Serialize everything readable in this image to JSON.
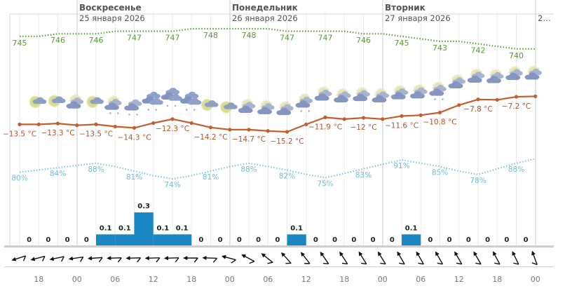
{
  "colors": {
    "pressure": "#5e9e3c",
    "temperature": "#c0602f",
    "humidity": "#82c8d8",
    "precipitation": "#1a86c4",
    "grid": "#ebebeb",
    "day_separator": "#cfcfcf",
    "wind": "#111111"
  },
  "days": [
    {
      "name": "Воскресенье",
      "date": "25 января 2026"
    },
    {
      "name": "Понедельник",
      "date": "26 января 2026"
    },
    {
      "name": "Вторник",
      "date": "27 января 2026"
    }
  ],
  "next_day_truncated": "2…",
  "chart_data": {
    "type": "line",
    "title": "",
    "step_hours": 3,
    "x_tick_labels": [
      "18",
      "00",
      "06",
      "12",
      "18",
      "00",
      "06",
      "12",
      "18",
      "00",
      "06",
      "12",
      "18",
      "00"
    ],
    "temperature": {
      "unit": "°C",
      "values": [
        -13.5,
        -13.5,
        -13.3,
        -13.7,
        -13.5,
        -14.0,
        -14.3,
        -13.2,
        -12.3,
        -13.2,
        -14.2,
        -14.7,
        -14.7,
        -15.0,
        -15.2,
        -13.5,
        -11.9,
        -12.3,
        -12.0,
        -12.3,
        -11.6,
        -11.4,
        -10.8,
        -9.1,
        -7.8,
        -7.9,
        -7.2,
        -7.1
      ],
      "labels": [
        "−13.5 °C",
        "−13.3 °C",
        "−13.5 °C",
        "−14.3 °C",
        "−12.3 °C",
        "−14.2 °C",
        "−14.7 °C",
        "−15.2 °C",
        "−11.9 °C",
        "−12 °C",
        "−11.6 °C",
        "−10.8 °C",
        "−7.8 °C",
        "−7.2 °C"
      ]
    },
    "pressure": {
      "values": [
        745,
        745,
        746,
        746,
        746,
        747,
        747,
        747,
        747,
        748,
        748,
        748,
        748,
        748,
        747,
        747,
        747,
        747,
        746,
        746,
        745,
        744,
        743,
        743,
        742,
        741,
        740,
        740
      ],
      "labels": [
        "745",
        "746",
        "746",
        "747",
        "747",
        "748",
        "748",
        "747",
        "747",
        "746",
        "745",
        "743",
        "742",
        "740"
      ]
    },
    "humidity": {
      "values": [
        80,
        82,
        84,
        86,
        88,
        85,
        81,
        77,
        74,
        77,
        81,
        85,
        88,
        85,
        82,
        78,
        75,
        79,
        83,
        87,
        91,
        88,
        85,
        81,
        78,
        83,
        88,
        92
      ],
      "labels": [
        "80%",
        "84%",
        "88%",
        "81%",
        "74%",
        "81%",
        "88%",
        "82%",
        "75%",
        "83%",
        "91%",
        "85%",
        "78%",
        "88%"
      ]
    },
    "precipitation": {
      "values": [
        0,
        0,
        0,
        0,
        0.1,
        0.1,
        0.3,
        0.1,
        0.1,
        0,
        0,
        0,
        0,
        0,
        0.1,
        0,
        0,
        0,
        0,
        0,
        0.1,
        0,
        0,
        0,
        0,
        0,
        0
      ],
      "labels": [
        "0",
        "0",
        "0",
        "0",
        "0.1",
        "0.1",
        "0.3",
        "0.1",
        "0.1",
        "0",
        "0",
        "0",
        "0",
        "0",
        "0.1",
        "0",
        "0",
        "0",
        "0",
        "0",
        "0.1",
        "0",
        "0",
        "0",
        "0",
        "0",
        "0"
      ]
    },
    "weather_icons": [
      "moon-cloud",
      "moon-cloud",
      "sun-cloud",
      "moon-cloud",
      "sun-cloud-snow",
      "cloud-snow",
      "overcast-snow",
      "overcast-snow",
      "overcast-snow",
      "moon-cloud",
      "moon-cloud",
      "sun-cloud",
      "sun-cloud",
      "sun-cloud",
      "sun-cloud-snow",
      "sun-cloud",
      "sun-cloud",
      "sun-cloud",
      "sun-cloud",
      "sun-cloud",
      "sun-cloud",
      "sun-cloud-snow",
      "sun-cloud",
      "sun-cloud",
      "sun-cloud",
      "sun-cloud",
      "sun-cloud"
    ],
    "wind_direction_deg": [
      252,
      255,
      258,
      262,
      266,
      268,
      268,
      268,
      268,
      270,
      272,
      285,
      298,
      308,
      318,
      322,
      325,
      327,
      328,
      328,
      330,
      330,
      330,
      330,
      330,
      332,
      334,
      340
    ]
  }
}
